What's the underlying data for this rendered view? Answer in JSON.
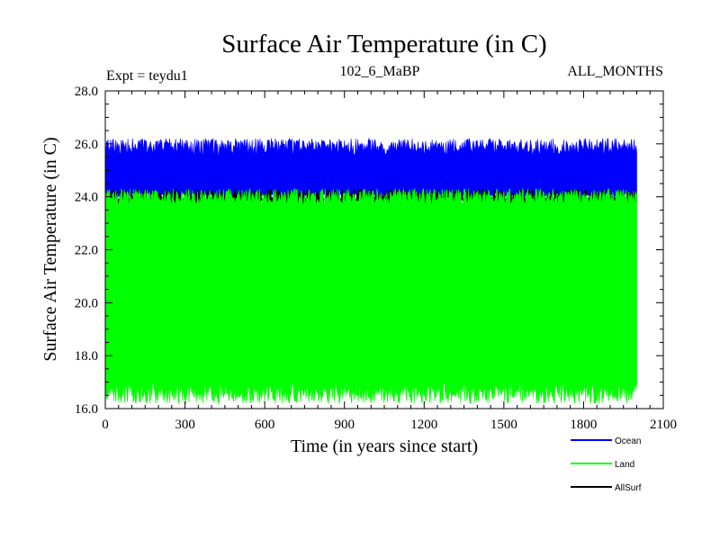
{
  "chart_data": {
    "type": "line",
    "title": "Surface Air Temperature (in C)",
    "subtitle_left": "Expt = teydu1",
    "subtitle_center": "102_6_MaBP",
    "subtitle_right": "ALL_MONTHS",
    "xlabel": "Time (in years since start)",
    "ylabel": "Surface Air Temperature (in C)",
    "xlim": [
      0,
      2100
    ],
    "ylim": [
      16.0,
      28.0
    ],
    "x_ticks": [
      0,
      300,
      600,
      900,
      1200,
      1500,
      1800,
      2100
    ],
    "x_tick_labels": [
      "0",
      "300",
      "600",
      "900",
      "1200",
      "1500",
      "1800",
      "2100"
    ],
    "y_ticks": [
      16.0,
      18.0,
      20.0,
      22.0,
      24.0,
      26.0,
      28.0
    ],
    "y_tick_labels": [
      "16.0",
      "18.0",
      "20.0",
      "22.0",
      "24.0",
      "26.0",
      "28.0"
    ],
    "data_x_range": [
      0,
      2000
    ],
    "series": [
      {
        "name": "Ocean",
        "color": "#0000ff",
        "min": 24.0,
        "max": 26.2,
        "mean_low": 24.1,
        "mean_high": 25.8
      },
      {
        "name": "Land",
        "color": "#00ff00",
        "min": 16.2,
        "max": 24.3,
        "mean_low": 16.7,
        "mean_high": 23.9
      },
      {
        "name": "AllSurf",
        "color": "#000000",
        "min": 23.5,
        "max": 24.3,
        "mean_low": 23.8,
        "mean_high": 24.0
      }
    ],
    "legend_position": "bottom-right"
  }
}
